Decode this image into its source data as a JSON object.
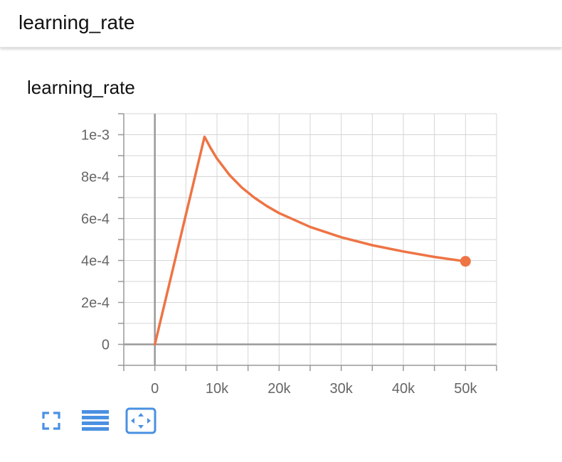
{
  "header": {
    "title": "learning_rate"
  },
  "card": {
    "title": "learning_rate"
  },
  "colors": {
    "series": "#ee7444",
    "accent_icon": "#4a90e2",
    "grid": "#d6d6d6",
    "axis": "#999999",
    "tick_text": "#666666"
  },
  "toolbar": {
    "buttons": [
      {
        "name": "fullscreen-button",
        "icon": "expand-corners-icon"
      },
      {
        "name": "toggle-log-scale-button",
        "icon": "lines-icon"
      },
      {
        "name": "fit-domain-button",
        "icon": "fit-to-data-icon"
      }
    ]
  },
  "chart_data": {
    "type": "line",
    "title": "learning_rate",
    "xlabel": "",
    "ylabel": "",
    "xlim": [
      -5000,
      55000
    ],
    "ylim": [
      -0.0001,
      0.0011
    ],
    "x_ticks": [
      0,
      10000,
      20000,
      30000,
      40000,
      50000
    ],
    "x_tick_labels": [
      "0",
      "10k",
      "20k",
      "30k",
      "40k",
      "50k"
    ],
    "y_ticks": [
      0,
      0.0002,
      0.0004,
      0.0006,
      0.0008,
      0.001
    ],
    "y_tick_labels": [
      "0",
      "2e-4",
      "4e-4",
      "6e-4",
      "8e-4",
      "1e-3"
    ],
    "grid": true,
    "legend": "none",
    "series": [
      {
        "x": [
          0,
          8000,
          9000,
          10000,
          12000,
          14000,
          16000,
          18000,
          20000,
          25000,
          30000,
          35000,
          40000,
          45000,
          50000
        ],
        "y": [
          0,
          0.00099,
          0.000935,
          0.000886,
          0.000808,
          0.000748,
          0.0007,
          0.00066,
          0.000626,
          0.00056,
          0.000511,
          0.000473,
          0.000443,
          0.000417,
          0.000396
        ],
        "end_marker": true
      }
    ]
  }
}
